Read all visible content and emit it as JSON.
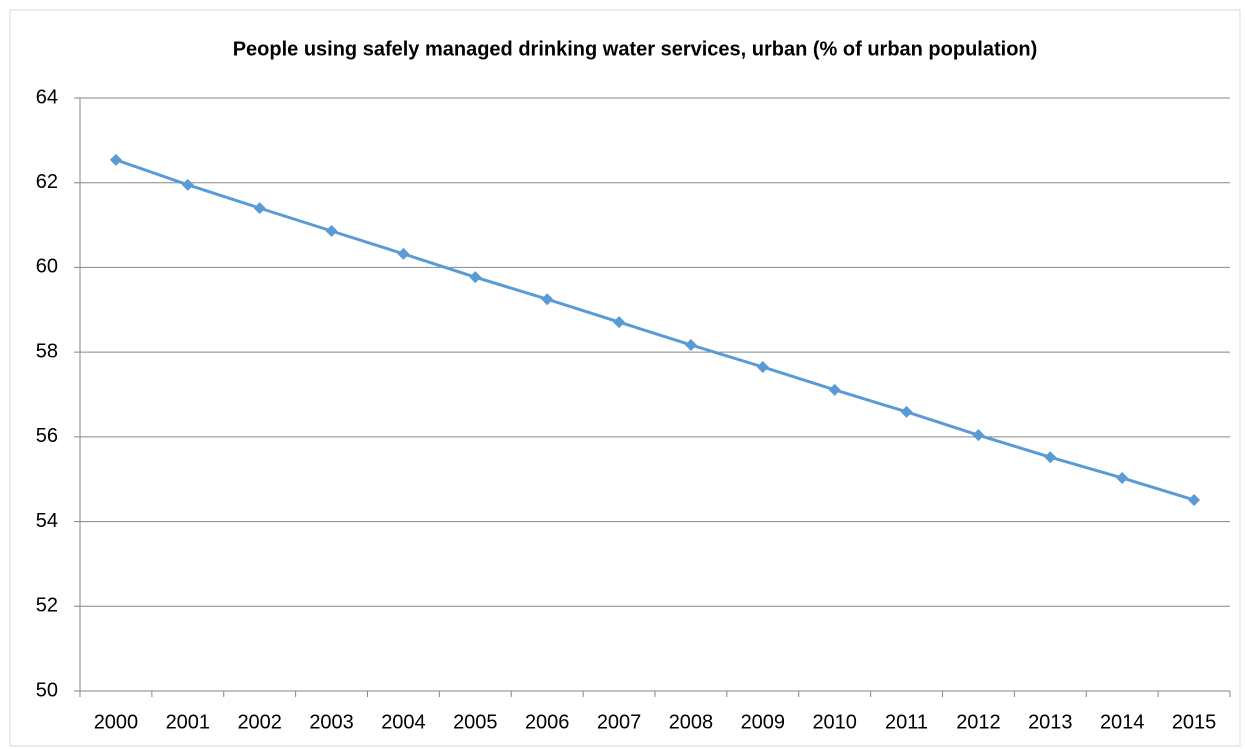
{
  "chart_data": {
    "type": "line",
    "title": "People using safely managed drinking water services, urban (% of urban population)",
    "categories": [
      "2000",
      "2001",
      "2002",
      "2003",
      "2004",
      "2005",
      "2006",
      "2007",
      "2008",
      "2009",
      "2010",
      "2011",
      "2012",
      "2013",
      "2014",
      "2015"
    ],
    "series": [
      {
        "name": "People using safely managed drinking water services, urban (% of urban population)",
        "color": "#5b9bd5",
        "values": [
          62.54,
          61.95,
          61.4,
          60.86,
          60.32,
          59.77,
          59.25,
          58.71,
          58.17,
          57.65,
          57.11,
          56.59,
          56.04,
          55.52,
          55.03,
          54.51
        ]
      }
    ],
    "ylim": [
      50,
      64
    ],
    "yticks": [
      50,
      52,
      54,
      56,
      58,
      60,
      62,
      64
    ],
    "grid": true
  }
}
